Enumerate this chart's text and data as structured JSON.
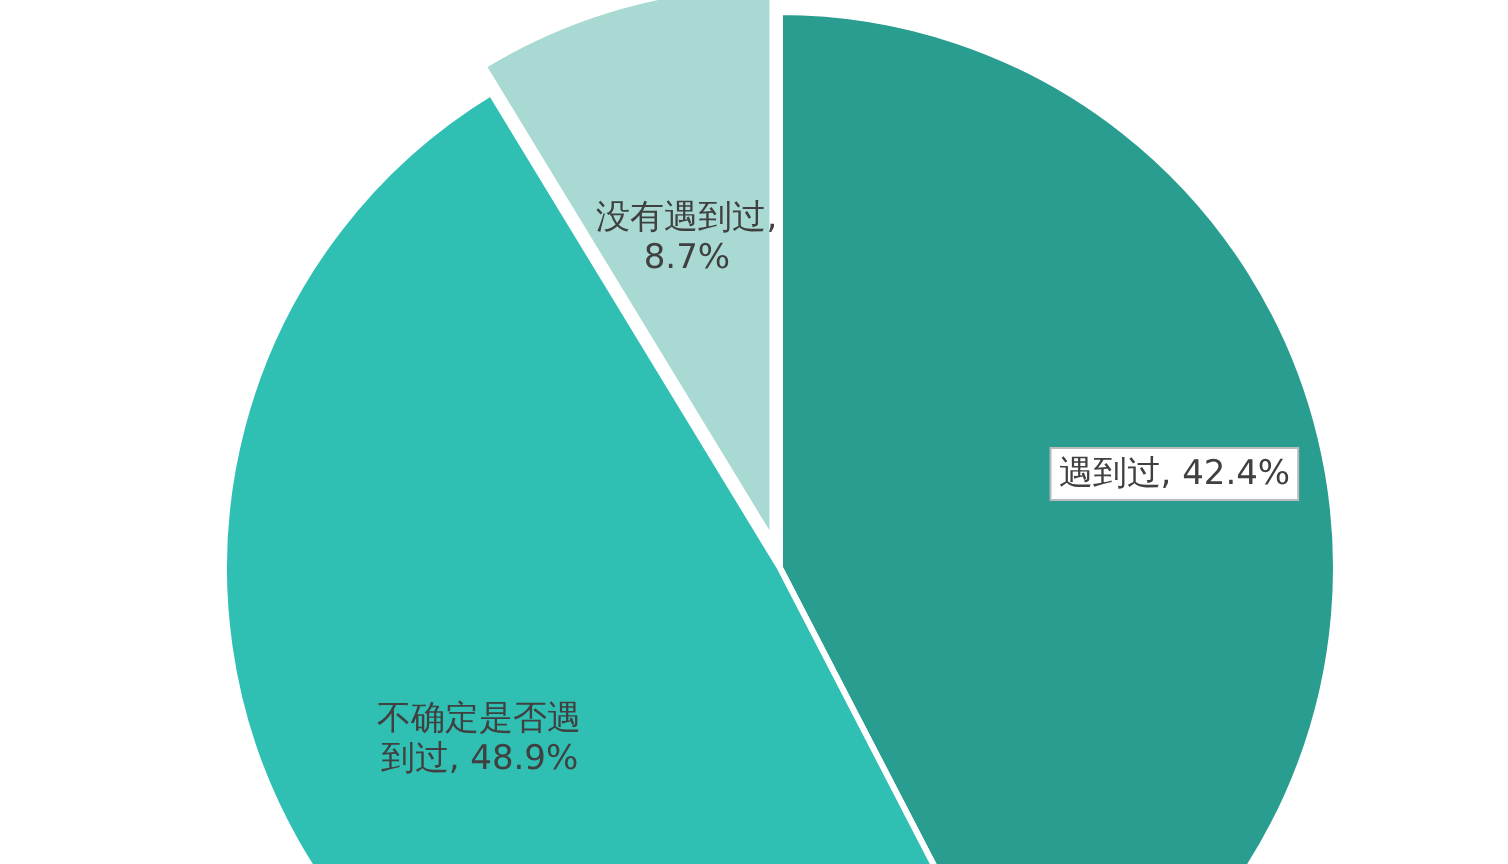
{
  "chart_data": {
    "type": "pie",
    "categories": [
      "遇到过",
      "不确定是否遇到过",
      "没有遇到过"
    ],
    "values": [
      42.4,
      48.9,
      8.7
    ],
    "value_labels": [
      ", 42.4%",
      ", 48.9%",
      ", 8.7%"
    ],
    "colors": [
      "#2a9d91",
      "#30c0b3",
      "#a8dad3"
    ]
  }
}
